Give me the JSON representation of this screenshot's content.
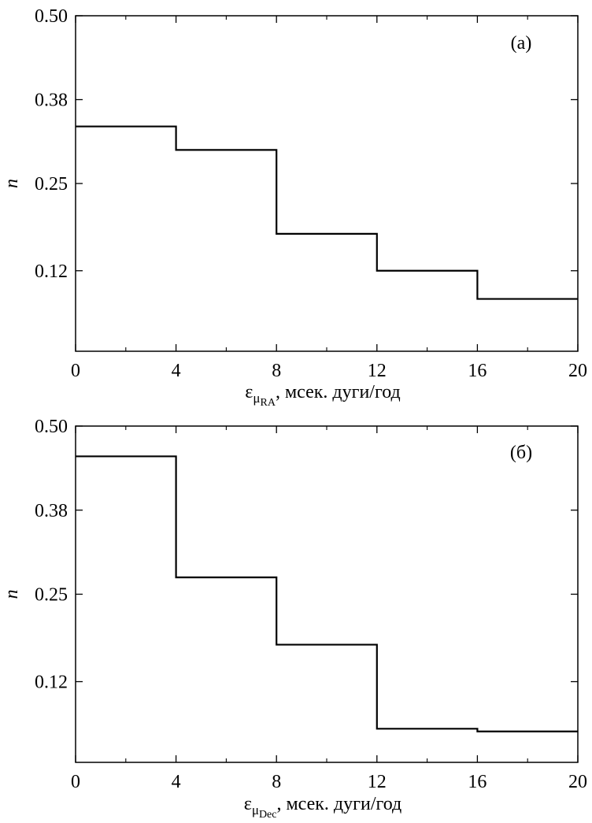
{
  "chart_data": [
    {
      "type": "line",
      "panel_label": "(а)",
      "xlabel": {
        "prefix": "ε",
        "sub": "μ",
        "subsub": "RA",
        "suffix": ", мсек. дуги/год"
      },
      "ylabel": "n",
      "xlim": [
        0,
        20
      ],
      "ylim": [
        0,
        0.5
      ],
      "xticks": [
        0,
        4,
        8,
        12,
        16,
        20
      ],
      "xtick_labels": [
        "0",
        "4",
        "8",
        "12",
        "16",
        "20"
      ],
      "yticks": [
        0.12,
        0.25,
        0.375,
        0.5
      ],
      "ytick_labels": [
        "0.12",
        "0.25",
        "0.38",
        "0.50"
      ],
      "step": "post",
      "bin_edges": [
        0,
        4,
        8,
        12,
        16,
        20
      ],
      "values": [
        0.335,
        0.3,
        0.175,
        0.12,
        0.078
      ]
    },
    {
      "type": "line",
      "panel_label": "(б)",
      "xlabel": {
        "prefix": "ε",
        "sub": "μ",
        "subsub": "Dec",
        "suffix": ", мсек. дуги/год"
      },
      "ylabel": "n",
      "xlim": [
        0,
        20
      ],
      "ylim": [
        0,
        0.5
      ],
      "xticks": [
        0,
        4,
        8,
        12,
        16,
        20
      ],
      "xtick_labels": [
        "0",
        "4",
        "8",
        "12",
        "16",
        "20"
      ],
      "yticks": [
        0.12,
        0.25,
        0.375,
        0.5
      ],
      "ytick_labels": [
        "0.12",
        "0.25",
        "0.38",
        "0.50"
      ],
      "step": "post",
      "bin_edges": [
        0,
        4,
        8,
        12,
        16,
        20
      ],
      "values": [
        0.455,
        0.275,
        0.175,
        0.05,
        0.046
      ]
    }
  ]
}
